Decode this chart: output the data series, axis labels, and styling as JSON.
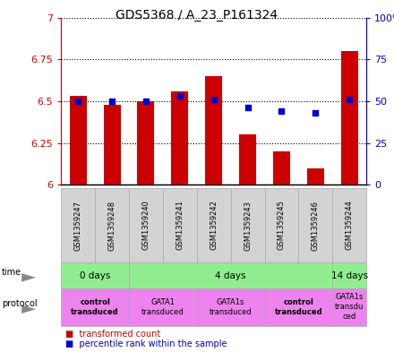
{
  "title": "GDS5368 / A_23_P161324",
  "samples": [
    "GSM1359247",
    "GSM1359248",
    "GSM1359240",
    "GSM1359241",
    "GSM1359242",
    "GSM1359243",
    "GSM1359245",
    "GSM1359246",
    "GSM1359244"
  ],
  "transformed_counts": [
    6.53,
    6.48,
    6.5,
    6.56,
    6.65,
    6.3,
    6.2,
    6.1,
    6.8
  ],
  "percentile_ranks": [
    50,
    50,
    50,
    53,
    51,
    46,
    44,
    43,
    51
  ],
  "y_min": 6.0,
  "y_max": 7.0,
  "y_ticks": [
    6.0,
    6.25,
    6.5,
    6.75,
    7.0
  ],
  "y_tick_labels": [
    "6",
    "6.25",
    "6.5",
    "6.75",
    "7"
  ],
  "y2_ticks": [
    0,
    25,
    50,
    75,
    100
  ],
  "y2_tick_labels": [
    "0",
    "25",
    "50",
    "75",
    "100%"
  ],
  "bar_color": "#cc0000",
  "dot_color": "#0000cc",
  "bar_width": 0.5,
  "time_groups": [
    {
      "label": "0 days",
      "start": 0,
      "end": 2,
      "color": "#90ee90"
    },
    {
      "label": "4 days",
      "start": 2,
      "end": 8,
      "color": "#90ee90"
    },
    {
      "label": "14 days",
      "start": 8,
      "end": 9,
      "color": "#90ee90"
    }
  ],
  "protocol_groups": [
    {
      "label": "control\ntransduced",
      "start": 0,
      "end": 2,
      "color": "#ee82ee",
      "bold": true
    },
    {
      "label": "GATA1\ntransduced",
      "start": 2,
      "end": 4,
      "color": "#ee82ee",
      "bold": false
    },
    {
      "label": "GATA1s\ntransduced",
      "start": 4,
      "end": 6,
      "color": "#ee82ee",
      "bold": false
    },
    {
      "label": "control\ntransduced",
      "start": 6,
      "end": 8,
      "color": "#ee82ee",
      "bold": true
    },
    {
      "label": "GATA1s\ntransdu\nced",
      "start": 8,
      "end": 9,
      "color": "#ee82ee",
      "bold": false
    }
  ],
  "ylabel_color_left": "#cc0000",
  "ylabel_color_right": "#0000cc",
  "grid_color": "#000000",
  "background_color": "#ffffff",
  "sample_bg_color": "#d3d3d3",
  "cell_edge_color": "#aaaaaa"
}
